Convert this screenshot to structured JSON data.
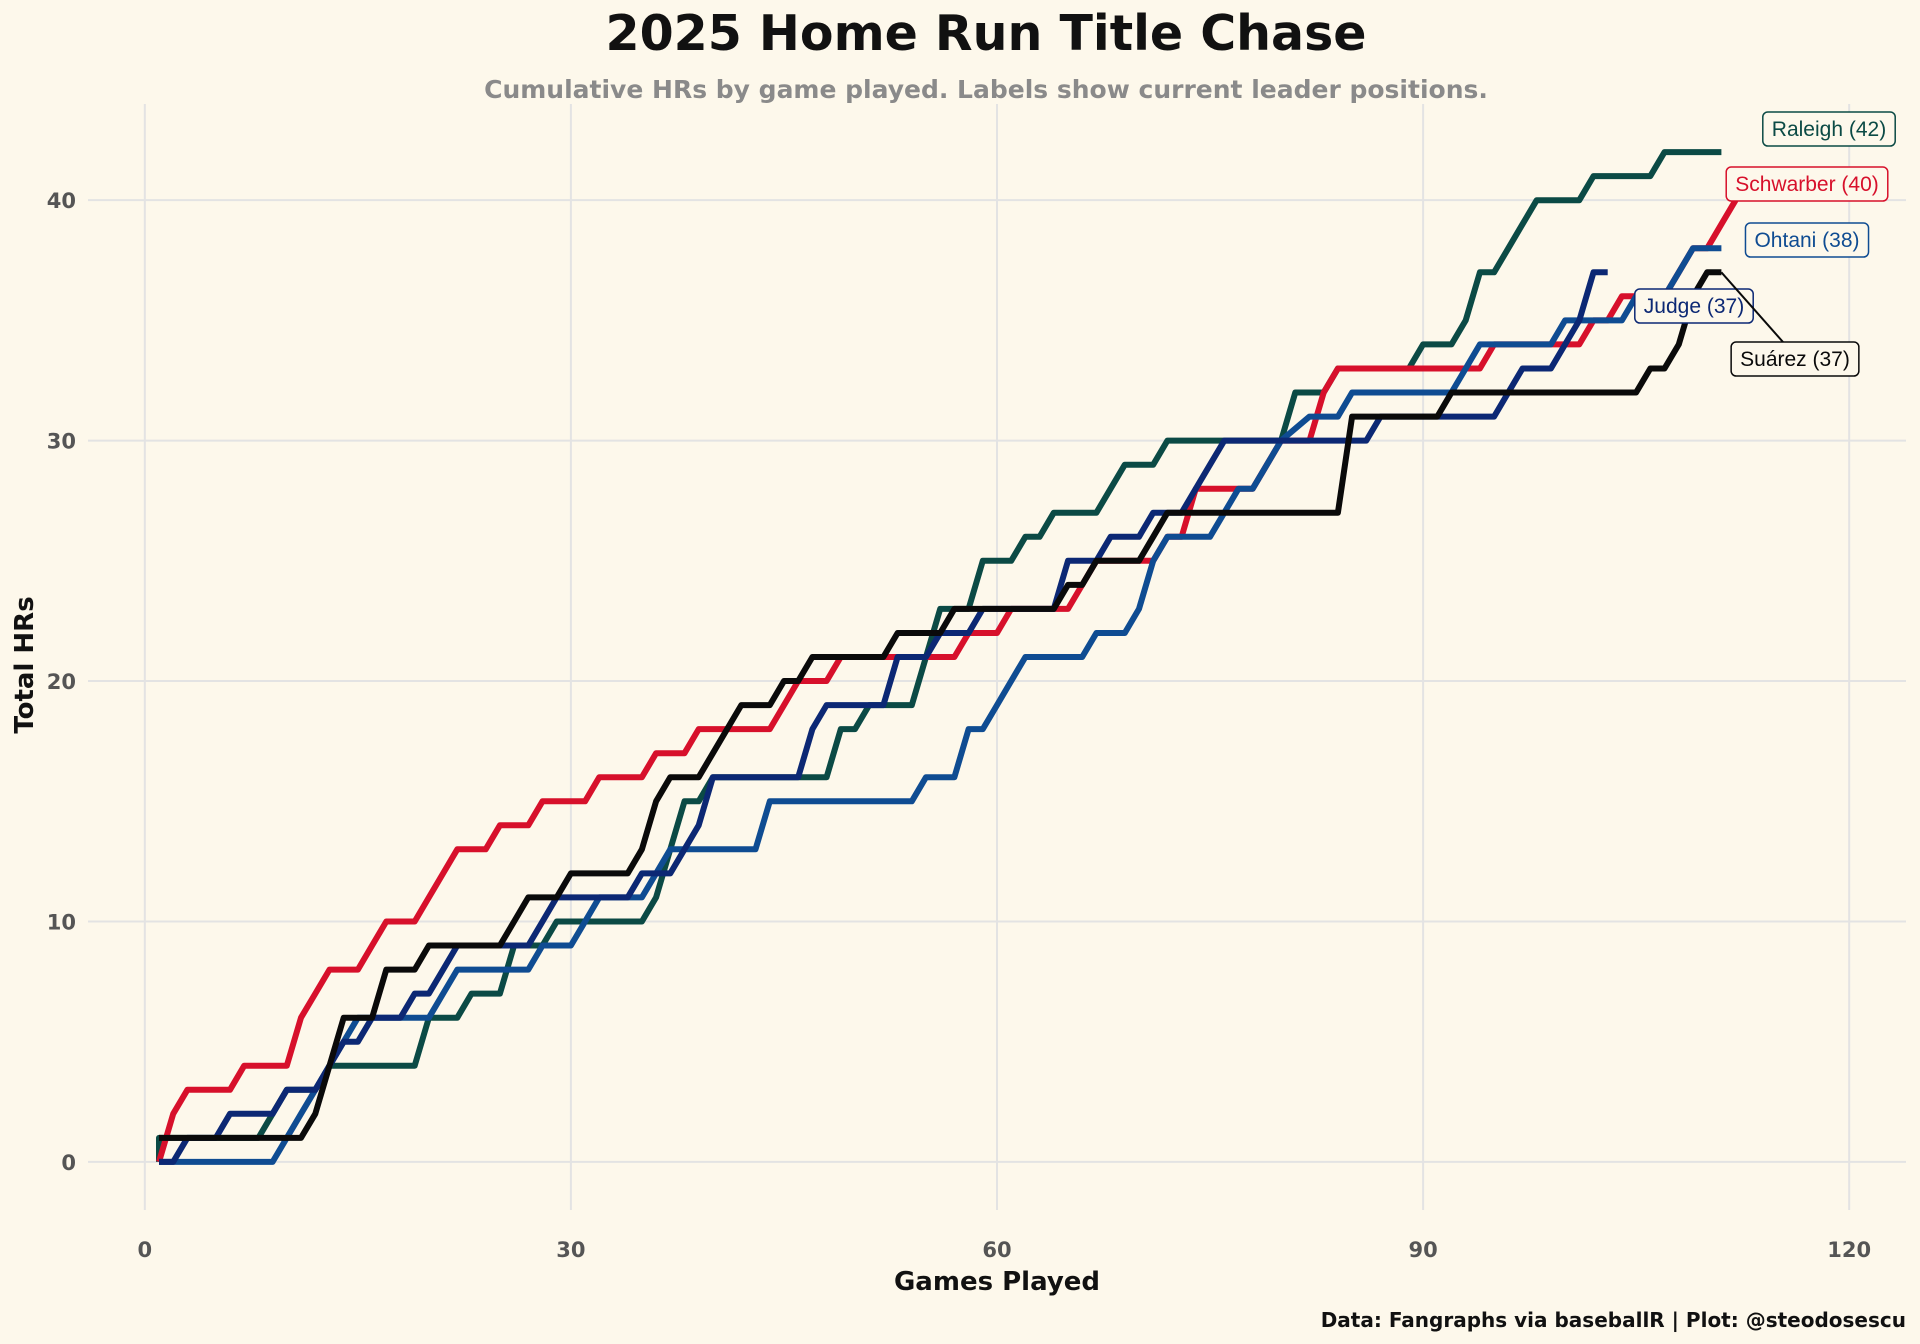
{
  "chart_data": {
    "type": "line",
    "title": "2025 Home Run Title Chase",
    "subtitle": "Cumulative HRs by game played. Labels show current leader positions.",
    "xlabel": "Games Played",
    "ylabel": "Total HRs",
    "caption": "Data: Fangraphs via baseballR | Plot: @steodosescu",
    "xlim": [
      -4,
      124
    ],
    "ylim": [
      -2,
      44
    ],
    "xticks": [
      0,
      30,
      60,
      90,
      120
    ],
    "yticks": [
      0,
      10,
      20,
      30,
      40
    ],
    "grid": true,
    "legend": "none (direct labels at line ends)",
    "series": [
      {
        "name": "Raleigh",
        "label": "Raleigh (42)",
        "color": "#0b4a45",
        "points": [
          [
            1,
            0
          ],
          [
            1,
            1
          ],
          [
            4,
            1
          ],
          [
            5,
            1
          ],
          [
            7,
            1
          ],
          [
            8,
            1
          ],
          [
            9,
            2
          ],
          [
            10,
            3
          ],
          [
            12,
            3
          ],
          [
            13,
            4
          ],
          [
            19,
            4
          ],
          [
            20,
            6
          ],
          [
            22,
            6
          ],
          [
            23,
            7
          ],
          [
            25,
            7
          ],
          [
            26,
            9
          ],
          [
            28,
            9
          ],
          [
            29,
            10
          ],
          [
            35,
            10
          ],
          [
            36,
            11
          ],
          [
            37,
            13
          ],
          [
            38,
            15
          ],
          [
            39,
            15
          ],
          [
            40,
            16
          ],
          [
            48,
            16
          ],
          [
            49,
            18
          ],
          [
            50,
            18
          ],
          [
            51,
            19
          ],
          [
            54,
            19
          ],
          [
            55,
            21
          ],
          [
            56,
            23
          ],
          [
            58,
            23
          ],
          [
            59,
            25
          ],
          [
            61,
            25
          ],
          [
            62,
            26
          ],
          [
            63,
            26
          ],
          [
            64,
            27
          ],
          [
            67,
            27
          ],
          [
            68,
            28
          ],
          [
            69,
            29
          ],
          [
            71,
            29
          ],
          [
            72,
            30
          ],
          [
            80,
            30
          ],
          [
            81,
            32
          ],
          [
            83,
            32
          ],
          [
            84,
            33
          ],
          [
            88,
            33
          ],
          [
            89,
            33
          ],
          [
            90,
            34
          ],
          [
            92,
            34
          ],
          [
            93,
            35
          ],
          [
            94,
            37
          ],
          [
            95,
            37
          ],
          [
            96,
            38
          ],
          [
            97,
            39
          ],
          [
            98,
            40
          ],
          [
            101,
            40
          ],
          [
            102,
            41
          ],
          [
            106,
            41
          ],
          [
            107,
            42
          ],
          [
            111,
            42
          ]
        ]
      },
      {
        "name": "Schwarber",
        "label": "Schwarber (40)",
        "color": "#d7102b",
        "points": [
          [
            1,
            0
          ],
          [
            2,
            2
          ],
          [
            3,
            3
          ],
          [
            6,
            3
          ],
          [
            7,
            4
          ],
          [
            10,
            4
          ],
          [
            11,
            6
          ],
          [
            12,
            7
          ],
          [
            13,
            8
          ],
          [
            15,
            8
          ],
          [
            16,
            9
          ],
          [
            17,
            10
          ],
          [
            19,
            10
          ],
          [
            20,
            11
          ],
          [
            21,
            12
          ],
          [
            22,
            13
          ],
          [
            24,
            13
          ],
          [
            25,
            14
          ],
          [
            27,
            14
          ],
          [
            28,
            15
          ],
          [
            31,
            15
          ],
          [
            32,
            16
          ],
          [
            35,
            16
          ],
          [
            36,
            17
          ],
          [
            38,
            17
          ],
          [
            39,
            18
          ],
          [
            44,
            18
          ],
          [
            45,
            19
          ],
          [
            46,
            20
          ],
          [
            48,
            20
          ],
          [
            49,
            21
          ],
          [
            57,
            21
          ],
          [
            58,
            22
          ],
          [
            60,
            22
          ],
          [
            61,
            23
          ],
          [
            65,
            23
          ],
          [
            66,
            24
          ],
          [
            67,
            25
          ],
          [
            71,
            25
          ],
          [
            72,
            26
          ],
          [
            73,
            26
          ],
          [
            74,
            28
          ],
          [
            77,
            28
          ],
          [
            78,
            28
          ],
          [
            79,
            29
          ],
          [
            80,
            30
          ],
          [
            82,
            30
          ],
          [
            83,
            32
          ],
          [
            84,
            33
          ],
          [
            94,
            33
          ],
          [
            95,
            34
          ],
          [
            101,
            34
          ],
          [
            102,
            35
          ],
          [
            103,
            35
          ],
          [
            104,
            36
          ],
          [
            107,
            36
          ],
          [
            108,
            37
          ],
          [
            109,
            38
          ],
          [
            110,
            38
          ],
          [
            111,
            39
          ],
          [
            112,
            40
          ]
        ]
      },
      {
        "name": "Ohtani",
        "label": "Ohtani (38)",
        "color": "#0f4c92",
        "points": [
          [
            1,
            0
          ],
          [
            9,
            0
          ],
          [
            10,
            1
          ],
          [
            11,
            2
          ],
          [
            12,
            3
          ],
          [
            13,
            4
          ],
          [
            14,
            5
          ],
          [
            15,
            6
          ],
          [
            20,
            6
          ],
          [
            21,
            7
          ],
          [
            22,
            8
          ],
          [
            27,
            8
          ],
          [
            28,
            9
          ],
          [
            30,
            9
          ],
          [
            31,
            10
          ],
          [
            32,
            11
          ],
          [
            35,
            11
          ],
          [
            36,
            12
          ],
          [
            37,
            13
          ],
          [
            43,
            13
          ],
          [
            44,
            15
          ],
          [
            54,
            15
          ],
          [
            55,
            16
          ],
          [
            57,
            16
          ],
          [
            58,
            18
          ],
          [
            59,
            18
          ],
          [
            60,
            19
          ],
          [
            61,
            20
          ],
          [
            62,
            21
          ],
          [
            66,
            21
          ],
          [
            67,
            22
          ],
          [
            69,
            22
          ],
          [
            70,
            23
          ],
          [
            71,
            25
          ],
          [
            72,
            26
          ],
          [
            75,
            26
          ],
          [
            76,
            27
          ],
          [
            77,
            28
          ],
          [
            78,
            28
          ],
          [
            79,
            29
          ],
          [
            80,
            30
          ],
          [
            82,
            31
          ],
          [
            84,
            31
          ],
          [
            85,
            32
          ],
          [
            92,
            32
          ],
          [
            93,
            33
          ],
          [
            94,
            34
          ],
          [
            99,
            34
          ],
          [
            100,
            35
          ],
          [
            104,
            35
          ],
          [
            105,
            36
          ],
          [
            107,
            36
          ],
          [
            108,
            37
          ],
          [
            109,
            38
          ],
          [
            111,
            38
          ]
        ]
      },
      {
        "name": "Judge",
        "label": "Judge (37)",
        "color": "#0c2874",
        "points": [
          [
            1,
            0
          ],
          [
            2,
            0
          ],
          [
            3,
            1
          ],
          [
            5,
            1
          ],
          [
            6,
            2
          ],
          [
            9,
            2
          ],
          [
            10,
            3
          ],
          [
            12,
            3
          ],
          [
            13,
            4
          ],
          [
            14,
            5
          ],
          [
            15,
            5
          ],
          [
            16,
            6
          ],
          [
            18,
            6
          ],
          [
            19,
            7
          ],
          [
            20,
            7
          ],
          [
            21,
            8
          ],
          [
            22,
            9
          ],
          [
            27,
            9
          ],
          [
            28,
            10
          ],
          [
            29,
            11
          ],
          [
            34,
            11
          ],
          [
            35,
            12
          ],
          [
            37,
            12
          ],
          [
            38,
            13
          ],
          [
            39,
            14
          ],
          [
            40,
            16
          ],
          [
            41,
            16
          ],
          [
            46,
            16
          ],
          [
            47,
            18
          ],
          [
            48,
            19
          ],
          [
            51,
            19
          ],
          [
            52,
            19
          ],
          [
            53,
            21
          ],
          [
            55,
            21
          ],
          [
            56,
            22
          ],
          [
            58,
            22
          ],
          [
            59,
            23
          ],
          [
            64,
            23
          ],
          [
            65,
            25
          ],
          [
            67,
            25
          ],
          [
            68,
            26
          ],
          [
            70,
            26
          ],
          [
            71,
            27
          ],
          [
            73,
            27
          ],
          [
            74,
            28
          ],
          [
            75,
            29
          ],
          [
            76,
            30
          ],
          [
            86,
            30
          ],
          [
            87,
            31
          ],
          [
            95,
            31
          ],
          [
            96,
            32
          ],
          [
            97,
            33
          ],
          [
            99,
            33
          ],
          [
            100,
            34
          ],
          [
            101,
            35
          ],
          [
            102,
            37
          ],
          [
            103,
            37
          ]
        ]
      },
      {
        "name": "Suárez",
        "label": "Suárez (37)",
        "color": "#0a0a0a",
        "points": [
          [
            1,
            1
          ],
          [
            11,
            1
          ],
          [
            12,
            2
          ],
          [
            13,
            4
          ],
          [
            14,
            6
          ],
          [
            16,
            6
          ],
          [
            17,
            8
          ],
          [
            19,
            8
          ],
          [
            20,
            9
          ],
          [
            25,
            9
          ],
          [
            26,
            10
          ],
          [
            27,
            11
          ],
          [
            29,
            11
          ],
          [
            30,
            12
          ],
          [
            34,
            12
          ],
          [
            35,
            13
          ],
          [
            36,
            15
          ],
          [
            37,
            16
          ],
          [
            39,
            16
          ],
          [
            40,
            17
          ],
          [
            41,
            18
          ],
          [
            42,
            19
          ],
          [
            44,
            19
          ],
          [
            45,
            20
          ],
          [
            46,
            20
          ],
          [
            47,
            21
          ],
          [
            52,
            21
          ],
          [
            53,
            22
          ],
          [
            56,
            22
          ],
          [
            57,
            23
          ],
          [
            64,
            23
          ],
          [
            65,
            24
          ],
          [
            66,
            24
          ],
          [
            67,
            25
          ],
          [
            70,
            25
          ],
          [
            71,
            26
          ],
          [
            72,
            27
          ],
          [
            84,
            27
          ],
          [
            85,
            31
          ],
          [
            91,
            31
          ],
          [
            92,
            32
          ],
          [
            105,
            32
          ],
          [
            106,
            33
          ],
          [
            107,
            33
          ],
          [
            108,
            34
          ],
          [
            109,
            36
          ],
          [
            110,
            37
          ],
          [
            111,
            37
          ]
        ]
      }
    ]
  }
}
